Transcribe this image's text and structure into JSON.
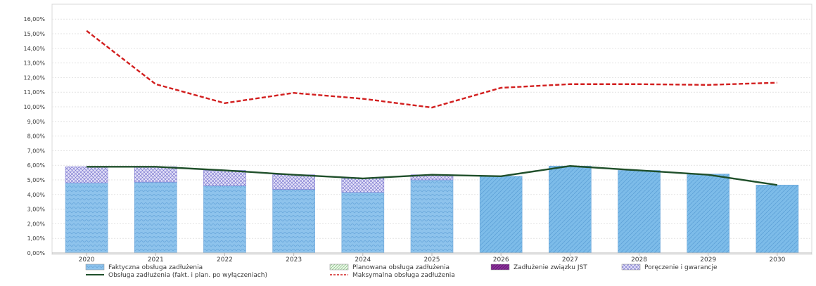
{
  "chart_data": {
    "type": "bar",
    "categories": [
      "2020",
      "2021",
      "2022",
      "2023",
      "2024",
      "2025",
      "2026",
      "2027",
      "2028",
      "2029",
      "2030"
    ],
    "y_unit": "%",
    "ylim": [
      0,
      16.5
    ],
    "y_ticks": [
      "0,00%",
      "1,00%",
      "2,00%",
      "3,00%",
      "4,00%",
      "5,00%",
      "6,00%",
      "7,00%",
      "8,00%",
      "9,00%",
      "10,00%",
      "11,00%",
      "12,00%",
      "13,00%",
      "14,00%",
      "15,00%",
      "16,00%"
    ],
    "grid": true,
    "stacked": true,
    "legend_position": "bottom",
    "series": [
      {
        "name": "Faktyczna obsługa zadłużenia",
        "kind": "bar",
        "color": "#8ec3ec",
        "values": [
          4.8,
          4.85,
          4.6,
          4.35,
          4.15,
          5.0,
          0,
          0,
          0,
          0,
          0
        ]
      },
      {
        "name": "Planowana obsługa zadłużenia",
        "kind": "bar",
        "color": "#7dbce9",
        "values": [
          0,
          0,
          0,
          0,
          0,
          0,
          5.25,
          5.95,
          5.65,
          5.4,
          4.65
        ]
      },
      {
        "name": "Zadłużenie związku JST",
        "kind": "bar",
        "color": "#7a2b8a",
        "values": [
          0,
          0,
          0,
          0,
          0,
          0,
          0,
          0,
          0,
          0,
          0
        ]
      },
      {
        "name": "Poręczenie i gwarancje",
        "kind": "bar",
        "color": "#8a86d6",
        "values": [
          1.1,
          1.05,
          1.05,
          1.0,
          0.95,
          0.35,
          0,
          0,
          0,
          0,
          0
        ]
      },
      {
        "name": "Obsługa zadłużenia (fakt. i plan. po wyłączeniach)",
        "kind": "line",
        "color": "#1f4f2a",
        "values": [
          5.9,
          5.9,
          5.65,
          5.35,
          5.1,
          5.35,
          5.25,
          5.95,
          5.65,
          5.35,
          4.65
        ]
      },
      {
        "name": "Maksymalna obsługa zadłużenia",
        "kind": "line-dashed",
        "color": "#d21f1f",
        "values": [
          15.2,
          11.55,
          10.25,
          10.95,
          10.55,
          9.95,
          11.3,
          11.55,
          11.55,
          11.5,
          11.65
        ]
      }
    ]
  }
}
